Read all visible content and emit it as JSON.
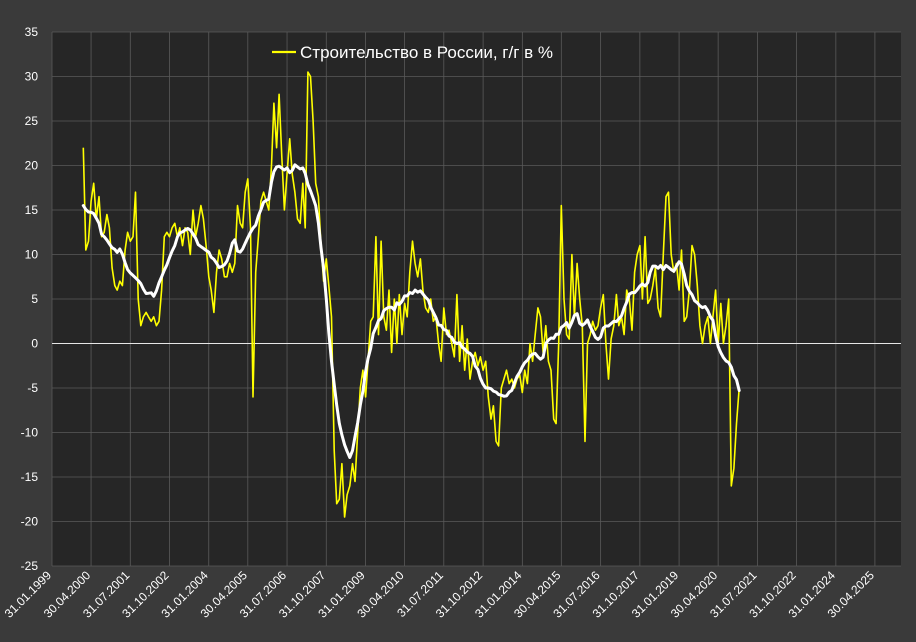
{
  "chart_data": {
    "type": "line",
    "title": "",
    "xlabel": "",
    "ylabel": "",
    "ylim": [
      -25,
      35
    ],
    "yticks": [
      -25,
      -20,
      -15,
      -10,
      -5,
      0,
      5,
      10,
      15,
      20,
      25,
      30,
      35
    ],
    "xlim": [
      "1999-01-31",
      "2026-02-28"
    ],
    "xticks": [
      "31.01.1999",
      "30.04.2000",
      "31.07.2001",
      "31.10.2002",
      "31.01.2004",
      "30.04.2005",
      "31.07.2006",
      "31.10.2007",
      "31.01.2009",
      "30.04.2010",
      "31.07.2011",
      "31.10.2012",
      "31.01.2014",
      "30.04.2015",
      "31.07.2016",
      "31.10.2017",
      "31.01.2019",
      "30.04.2020",
      "31.07.2021",
      "31.10.2022",
      "31.01.2024",
      "30.04.2025"
    ],
    "grid": true,
    "legend_position": "top-center",
    "colors": {
      "raw": "#ffff00",
      "smooth": "#ffffff",
      "background": "#3a3a3a",
      "plot_area": "#262626",
      "grid": "#5a5a5a",
      "zero_line": "#e6e6e6",
      "text": "#ffffff"
    },
    "series": [
      {
        "name": "Строительство в России, г/г в %",
        "values": [
          [
            "2000-01-31",
            22.0
          ],
          [
            "2000-02-29",
            10.5
          ],
          [
            "2000-03-31",
            11.5
          ],
          [
            "2000-04-30",
            16.0
          ],
          [
            "2000-05-31",
            18.0
          ],
          [
            "2000-06-30",
            14.0
          ],
          [
            "2000-07-31",
            16.5
          ],
          [
            "2000-08-31",
            12.0
          ],
          [
            "2000-09-30",
            12.5
          ],
          [
            "2000-10-31",
            14.5
          ],
          [
            "2000-11-30",
            13.0
          ],
          [
            "2000-12-31",
            8.5
          ],
          [
            "2001-01-31",
            6.5
          ],
          [
            "2001-02-28",
            6.0
          ],
          [
            "2001-03-31",
            7.0
          ],
          [
            "2001-04-30",
            6.5
          ],
          [
            "2001-05-31",
            10.5
          ],
          [
            "2001-06-30",
            12.5
          ],
          [
            "2001-07-31",
            11.5
          ],
          [
            "2001-08-31",
            12.0
          ],
          [
            "2001-09-30",
            17.0
          ],
          [
            "2001-10-31",
            5.0
          ],
          [
            "2001-11-30",
            2.0
          ],
          [
            "2001-12-31",
            3.0
          ],
          [
            "2002-01-31",
            3.5
          ],
          [
            "2002-02-28",
            3.0
          ],
          [
            "2002-03-31",
            2.5
          ],
          [
            "2002-04-30",
            3.0
          ],
          [
            "2002-05-31",
            2.0
          ],
          [
            "2002-06-30",
            2.5
          ],
          [
            "2002-07-31",
            6.0
          ],
          [
            "2002-08-31",
            12.0
          ],
          [
            "2002-09-30",
            12.5
          ],
          [
            "2002-10-31",
            12.0
          ],
          [
            "2002-11-30",
            13.0
          ],
          [
            "2002-12-31",
            13.5
          ],
          [
            "2003-01-31",
            12.0
          ],
          [
            "2003-02-28",
            13.0
          ],
          [
            "2003-03-31",
            11.0
          ],
          [
            "2003-04-30",
            13.0
          ],
          [
            "2003-05-31",
            12.5
          ],
          [
            "2003-06-30",
            10.0
          ],
          [
            "2003-07-31",
            15.0
          ],
          [
            "2003-08-31",
            12.0
          ],
          [
            "2003-09-30",
            13.5
          ],
          [
            "2003-10-31",
            15.5
          ],
          [
            "2003-11-30",
            14.0
          ],
          [
            "2003-12-31",
            11.0
          ],
          [
            "2004-01-31",
            7.5
          ],
          [
            "2004-02-29",
            6.0
          ],
          [
            "2004-03-31",
            3.5
          ],
          [
            "2004-04-30",
            8.0
          ],
          [
            "2004-05-31",
            10.5
          ],
          [
            "2004-06-30",
            9.5
          ],
          [
            "2004-07-31",
            7.5
          ],
          [
            "2004-08-31",
            7.5
          ],
          [
            "2004-09-30",
            9.0
          ],
          [
            "2004-10-31",
            8.0
          ],
          [
            "2004-11-30",
            9.0
          ],
          [
            "2004-12-31",
            15.5
          ],
          [
            "2005-01-31",
            13.5
          ],
          [
            "2005-02-28",
            13.0
          ],
          [
            "2005-03-31",
            17.0
          ],
          [
            "2005-04-30",
            18.5
          ],
          [
            "2005-05-31",
            13.0
          ],
          [
            "2005-06-30",
            -6.0
          ],
          [
            "2005-07-31",
            8.0
          ],
          [
            "2005-08-31",
            12.0
          ],
          [
            "2005-09-30",
            16.0
          ],
          [
            "2005-10-31",
            17.0
          ],
          [
            "2005-11-30",
            16.0
          ],
          [
            "2005-12-31",
            15.0
          ],
          [
            "2006-01-31",
            20.0
          ],
          [
            "2006-02-28",
            27.0
          ],
          [
            "2006-03-31",
            22.0
          ],
          [
            "2006-04-30",
            28.0
          ],
          [
            "2006-05-31",
            21.0
          ],
          [
            "2006-06-30",
            15.0
          ],
          [
            "2006-07-31",
            19.0
          ],
          [
            "2006-08-31",
            23.0
          ],
          [
            "2006-09-30",
            19.0
          ],
          [
            "2006-10-31",
            17.0
          ],
          [
            "2006-11-30",
            14.0
          ],
          [
            "2006-12-31",
            13.5
          ],
          [
            "2007-01-31",
            18.0
          ],
          [
            "2007-02-28",
            13.0
          ],
          [
            "2007-03-31",
            30.5
          ],
          [
            "2007-04-30",
            30.0
          ],
          [
            "2007-05-31",
            25.0
          ],
          [
            "2007-06-30",
            18.0
          ],
          [
            "2007-07-31",
            16.5
          ],
          [
            "2007-08-31",
            11.0
          ],
          [
            "2007-09-30",
            7.0
          ],
          [
            "2007-10-31",
            9.5
          ],
          [
            "2007-11-30",
            6.5
          ],
          [
            "2007-12-31",
            3.0
          ],
          [
            "2008-01-31",
            -12.0
          ],
          [
            "2008-02-29",
            -18.0
          ],
          [
            "2008-03-31",
            -17.5
          ],
          [
            "2008-04-30",
            -13.5
          ],
          [
            "2008-05-31",
            -19.5
          ],
          [
            "2008-06-30",
            -17.0
          ],
          [
            "2008-07-31",
            -16.0
          ],
          [
            "2008-08-31",
            -13.5
          ],
          [
            "2008-09-30",
            -15.5
          ],
          [
            "2008-10-31",
            -10.0
          ],
          [
            "2008-11-30",
            -5.0
          ],
          [
            "2008-12-31",
            -3.0
          ],
          [
            "2009-01-31",
            -6.0
          ],
          [
            "2009-02-28",
            -2.0
          ],
          [
            "2009-03-31",
            2.5
          ],
          [
            "2009-04-30",
            3.0
          ],
          [
            "2009-05-31",
            12.0
          ],
          [
            "2009-06-30",
            1.0
          ],
          [
            "2009-07-31",
            11.5
          ],
          [
            "2009-08-31",
            3.0
          ],
          [
            "2009-09-30",
            1.5
          ],
          [
            "2009-10-31",
            6.0
          ],
          [
            "2009-11-30",
            -1.0
          ],
          [
            "2009-12-31",
            5.0
          ],
          [
            "2010-01-31",
            0.0
          ],
          [
            "2010-02-28",
            5.5
          ],
          [
            "2010-03-31",
            1.0
          ],
          [
            "2010-04-30",
            4.5
          ],
          [
            "2010-05-31",
            3.0
          ],
          [
            "2010-06-30",
            8.0
          ],
          [
            "2010-07-31",
            11.5
          ],
          [
            "2010-08-31",
            9.0
          ],
          [
            "2010-09-30",
            7.5
          ],
          [
            "2010-10-31",
            9.5
          ],
          [
            "2010-11-30",
            6.0
          ],
          [
            "2010-12-31",
            4.0
          ],
          [
            "2011-01-31",
            3.5
          ],
          [
            "2011-02-28",
            5.0
          ],
          [
            "2011-03-31",
            2.5
          ],
          [
            "2011-04-30",
            3.0
          ],
          [
            "2011-05-31",
            0.0
          ],
          [
            "2011-06-30",
            -2.0
          ],
          [
            "2011-07-31",
            4.0
          ],
          [
            "2011-08-31",
            1.0
          ],
          [
            "2011-09-30",
            1.5
          ],
          [
            "2011-10-31",
            0.0
          ],
          [
            "2011-11-30",
            -1.5
          ],
          [
            "2011-12-31",
            5.5
          ],
          [
            "2012-01-31",
            -2.0
          ],
          [
            "2012-02-29",
            2.0
          ],
          [
            "2012-03-31",
            -3.0
          ],
          [
            "2012-04-30",
            0.5
          ],
          [
            "2012-05-31",
            -4.0
          ],
          [
            "2012-06-30",
            -2.0
          ],
          [
            "2012-07-31",
            -1.0
          ],
          [
            "2012-08-31",
            -2.5
          ],
          [
            "2012-09-30",
            -1.5
          ],
          [
            "2012-10-31",
            -3.0
          ],
          [
            "2012-11-30",
            -2.0
          ],
          [
            "2012-12-31",
            -6.0
          ],
          [
            "2013-01-31",
            -8.5
          ],
          [
            "2013-02-28",
            -7.0
          ],
          [
            "2013-03-31",
            -11.0
          ],
          [
            "2013-04-30",
            -11.5
          ],
          [
            "2013-05-31",
            -5.0
          ],
          [
            "2013-06-30",
            -4.0
          ],
          [
            "2013-07-31",
            -3.0
          ],
          [
            "2013-08-31",
            -4.5
          ],
          [
            "2013-09-30",
            -4.0
          ],
          [
            "2013-10-31",
            -5.0
          ],
          [
            "2013-11-30",
            -4.0
          ],
          [
            "2013-12-31",
            -3.5
          ],
          [
            "2014-01-31",
            -5.5
          ],
          [
            "2014-02-28",
            -3.0
          ],
          [
            "2014-03-31",
            -4.5
          ],
          [
            "2014-04-30",
            0.0
          ],
          [
            "2014-05-31",
            -2.0
          ],
          [
            "2014-06-30",
            1.0
          ],
          [
            "2014-07-31",
            4.0
          ],
          [
            "2014-08-31",
            3.0
          ],
          [
            "2014-09-30",
            -1.0
          ],
          [
            "2014-10-31",
            2.0
          ],
          [
            "2014-11-30",
            -2.0
          ],
          [
            "2014-12-31",
            -3.0
          ],
          [
            "2015-01-31",
            -8.5
          ],
          [
            "2015-02-28",
            -9.0
          ],
          [
            "2015-03-31",
            0.0
          ],
          [
            "2015-04-30",
            15.5
          ],
          [
            "2015-05-31",
            5.0
          ],
          [
            "2015-06-30",
            1.0
          ],
          [
            "2015-07-31",
            0.5
          ],
          [
            "2015-08-31",
            10.0
          ],
          [
            "2015-09-30",
            3.0
          ],
          [
            "2015-10-31",
            9.0
          ],
          [
            "2015-11-30",
            5.0
          ],
          [
            "2015-12-31",
            2.0
          ],
          [
            "2016-01-31",
            -11.0
          ],
          [
            "2016-02-29",
            0.0
          ],
          [
            "2016-03-31",
            1.0
          ],
          [
            "2016-04-30",
            2.5
          ],
          [
            "2016-05-31",
            1.5
          ],
          [
            "2016-06-30",
            2.0
          ],
          [
            "2016-07-31",
            4.0
          ],
          [
            "2016-08-31",
            5.5
          ],
          [
            "2016-09-30",
            0.0
          ],
          [
            "2016-10-31",
            -4.0
          ],
          [
            "2016-11-30",
            0.5
          ],
          [
            "2016-12-31",
            2.0
          ],
          [
            "2017-01-31",
            5.5
          ],
          [
            "2017-02-28",
            2.0
          ],
          [
            "2017-03-31",
            3.0
          ],
          [
            "2017-04-30",
            1.0
          ],
          [
            "2017-05-31",
            6.0
          ],
          [
            "2017-06-30",
            5.0
          ],
          [
            "2017-07-31",
            1.5
          ],
          [
            "2017-08-31",
            8.0
          ],
          [
            "2017-09-30",
            10.0
          ],
          [
            "2017-10-31",
            11.0
          ],
          [
            "2017-11-30",
            5.0
          ],
          [
            "2017-12-31",
            12.0
          ],
          [
            "2018-01-31",
            4.5
          ],
          [
            "2018-02-28",
            5.0
          ],
          [
            "2018-03-31",
            6.5
          ],
          [
            "2018-04-30",
            8.5
          ],
          [
            "2018-05-31",
            4.0
          ],
          [
            "2018-06-30",
            3.0
          ],
          [
            "2018-07-31",
            10.0
          ],
          [
            "2018-08-31",
            16.5
          ],
          [
            "2018-09-30",
            17.0
          ],
          [
            "2018-10-31",
            10.0
          ],
          [
            "2018-11-30",
            8.0
          ],
          [
            "2018-12-31",
            9.0
          ],
          [
            "2019-01-31",
            6.0
          ],
          [
            "2019-02-28",
            10.5
          ],
          [
            "2019-03-31",
            2.5
          ],
          [
            "2019-04-30",
            3.0
          ],
          [
            "2019-05-31",
            6.0
          ],
          [
            "2019-06-30",
            11.0
          ],
          [
            "2019-07-31",
            10.0
          ],
          [
            "2019-08-31",
            6.5
          ],
          [
            "2019-09-30",
            2.0
          ],
          [
            "2019-10-31",
            0.0
          ],
          [
            "2019-11-30",
            2.0
          ],
          [
            "2019-12-31",
            3.0
          ],
          [
            "2020-01-31",
            0.0
          ],
          [
            "2020-02-29",
            3.0
          ],
          [
            "2020-03-31",
            6.0
          ],
          [
            "2020-04-30",
            0.0
          ],
          [
            "2020-05-31",
            4.5
          ],
          [
            "2020-06-30",
            0.0
          ],
          [
            "2020-07-31",
            2.0
          ],
          [
            "2020-08-31",
            5.0
          ],
          [
            "2020-09-30",
            -16.0
          ],
          [
            "2020-10-31",
            -14.0
          ],
          [
            "2020-11-30",
            -9.0
          ],
          [
            "2020-12-31",
            -5.0
          ]
        ]
      }
    ]
  }
}
